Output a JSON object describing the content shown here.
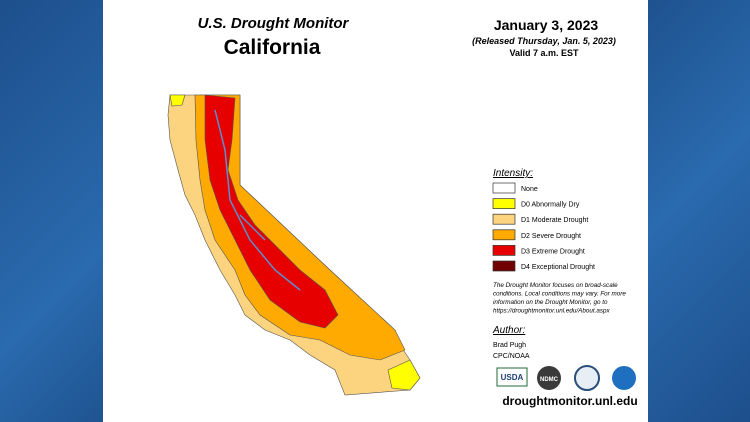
{
  "header": {
    "title": "U.S. Drought Monitor",
    "state": "California",
    "date": "January 3, 2023",
    "released": "(Released Thursday, Jan. 5, 2023)",
    "valid": "Valid 7 a.m. EST"
  },
  "legend": {
    "title": "Intensity:",
    "items": [
      {
        "label": "None",
        "color": "#ffffff"
      },
      {
        "label": "D0 Abnormally Dry",
        "color": "#ffff00"
      },
      {
        "label": "D1 Moderate Drought",
        "color": "#fcd37f"
      },
      {
        "label": "D2 Severe Drought",
        "color": "#ffaa00"
      },
      {
        "label": "D3 Extreme Drought",
        "color": "#e60000"
      },
      {
        "label": "D4 Exceptional Drought",
        "color": "#730000"
      }
    ]
  },
  "note": [
    "The Drought Monitor focuses on broad-scale",
    "conditions. Local conditions may vary. For more",
    "information on the Drought Monitor, go to",
    "https://droughtmonitor.unl.edu/About.aspx"
  ],
  "author": {
    "title": "Author:",
    "name": "Brad Pugh",
    "org": "CPC/NOAA"
  },
  "logos": [
    "USDA",
    "NDMC"
  ],
  "url": "droughtmonitor.unl.edu"
}
